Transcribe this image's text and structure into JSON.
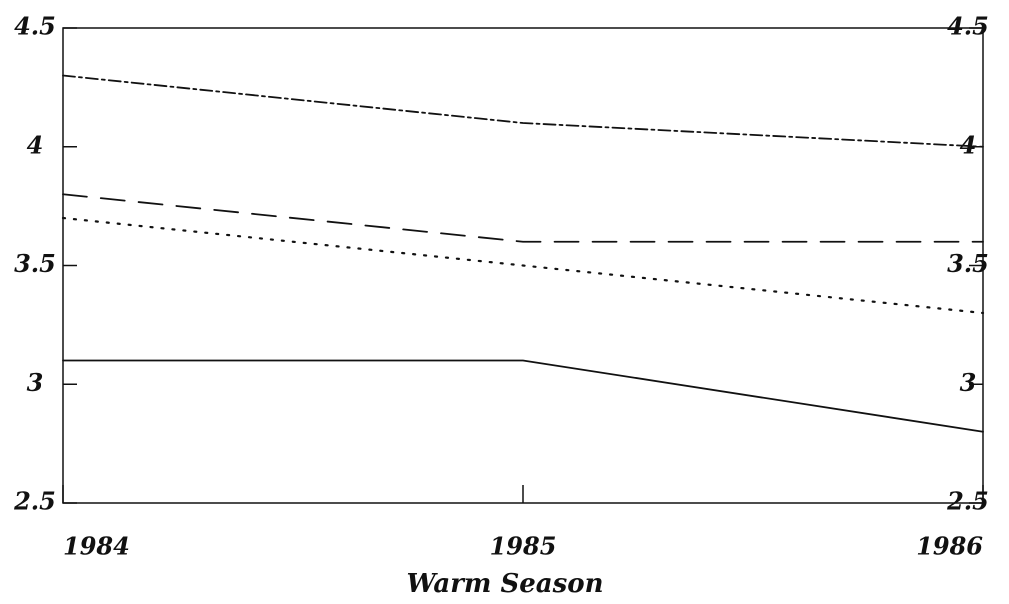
{
  "chart_data": {
    "type": "line",
    "x": [
      1984,
      1985,
      1986
    ],
    "xlim": [
      1984,
      1986
    ],
    "xticks": [
      1984,
      1985,
      1986
    ],
    "ylim": [
      2.5,
      4.5
    ],
    "yticks": [
      2.5,
      3,
      3.5,
      4,
      4.5
    ],
    "y2lim": [
      2.5,
      4.5
    ],
    "y2ticks": [
      2.5,
      3,
      3.5,
      4,
      4.5
    ],
    "xlabel": "Warm Season",
    "grid": false,
    "series": [
      {
        "color": "#111111",
        "dash": "dashdot",
        "values": [
          4.3,
          4.1,
          4.0
        ]
      },
      {
        "color": "#111111",
        "dash": "dashed",
        "values": [
          3.8,
          3.6,
          3.6
        ]
      },
      {
        "color": "#111111",
        "dash": "dotted",
        "values": [
          3.7,
          3.5,
          3.3
        ]
      },
      {
        "color": "#111111",
        "dash": "solid",
        "values": [
          3.1,
          3.1,
          2.8
        ]
      }
    ]
  }
}
